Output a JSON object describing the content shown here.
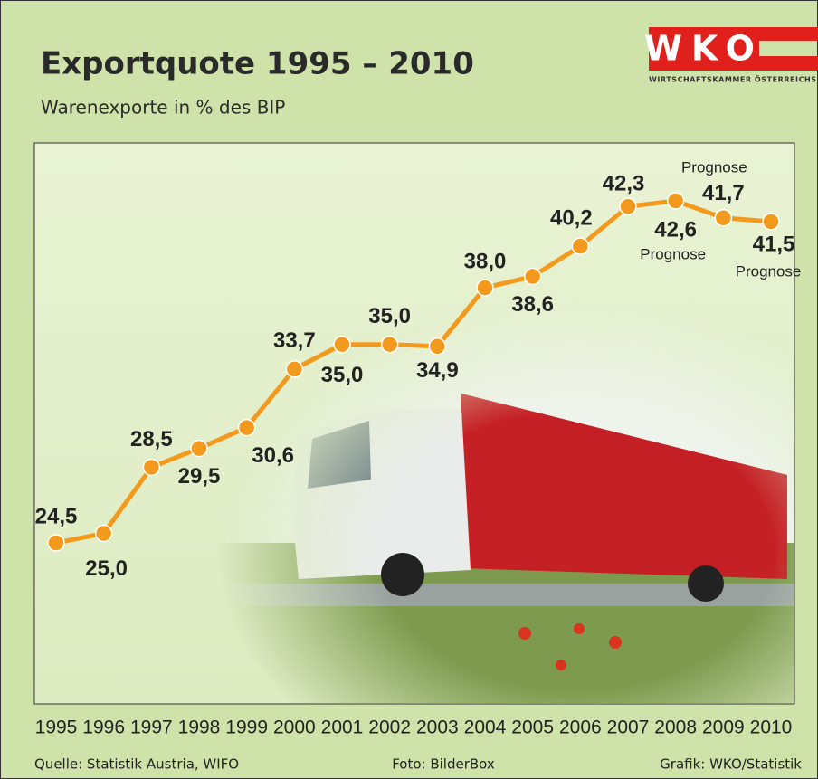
{
  "chart_data": {
    "type": "line",
    "title": "Exportquote 1995 – 2010",
    "subtitle": "Warenexporte in % des BIP",
    "categories": [
      "1995",
      "1996",
      "1997",
      "1998",
      "1999",
      "2000",
      "2001",
      "2002",
      "2003",
      "2004",
      "2005",
      "2006",
      "2007",
      "2008",
      "2009",
      "2010"
    ],
    "series": [
      {
        "color": "#f39a1e",
        "values": [
          24.5,
          25.0,
          28.5,
          29.5,
          30.6,
          33.7,
          35.0,
          35.0,
          34.9,
          38.0,
          38.6,
          40.2,
          42.3,
          42.6,
          41.7,
          41.5
        ],
        "value_labels": [
          "24,5",
          "25,0",
          "28,5",
          "29,5",
          "30,6",
          "33,7",
          "35,0",
          "35,0",
          "34,9",
          "38,0",
          "38,6",
          "40,2",
          "42,3",
          "42,6",
          "41,7",
          "41,5"
        ]
      }
    ],
    "annotations": [
      "Prognose",
      "Prognose",
      "Prognose"
    ],
    "logo": {
      "text": "WKO",
      "subtitle": "WIRTSCHAFTSKAMMER ÖSTERREICHS"
    },
    "footer": {
      "source": "Quelle: Statistik Austria, WIFO",
      "photo": "Foto: BilderBox",
      "graphic": "Grafik: WKO/Statistik"
    }
  }
}
